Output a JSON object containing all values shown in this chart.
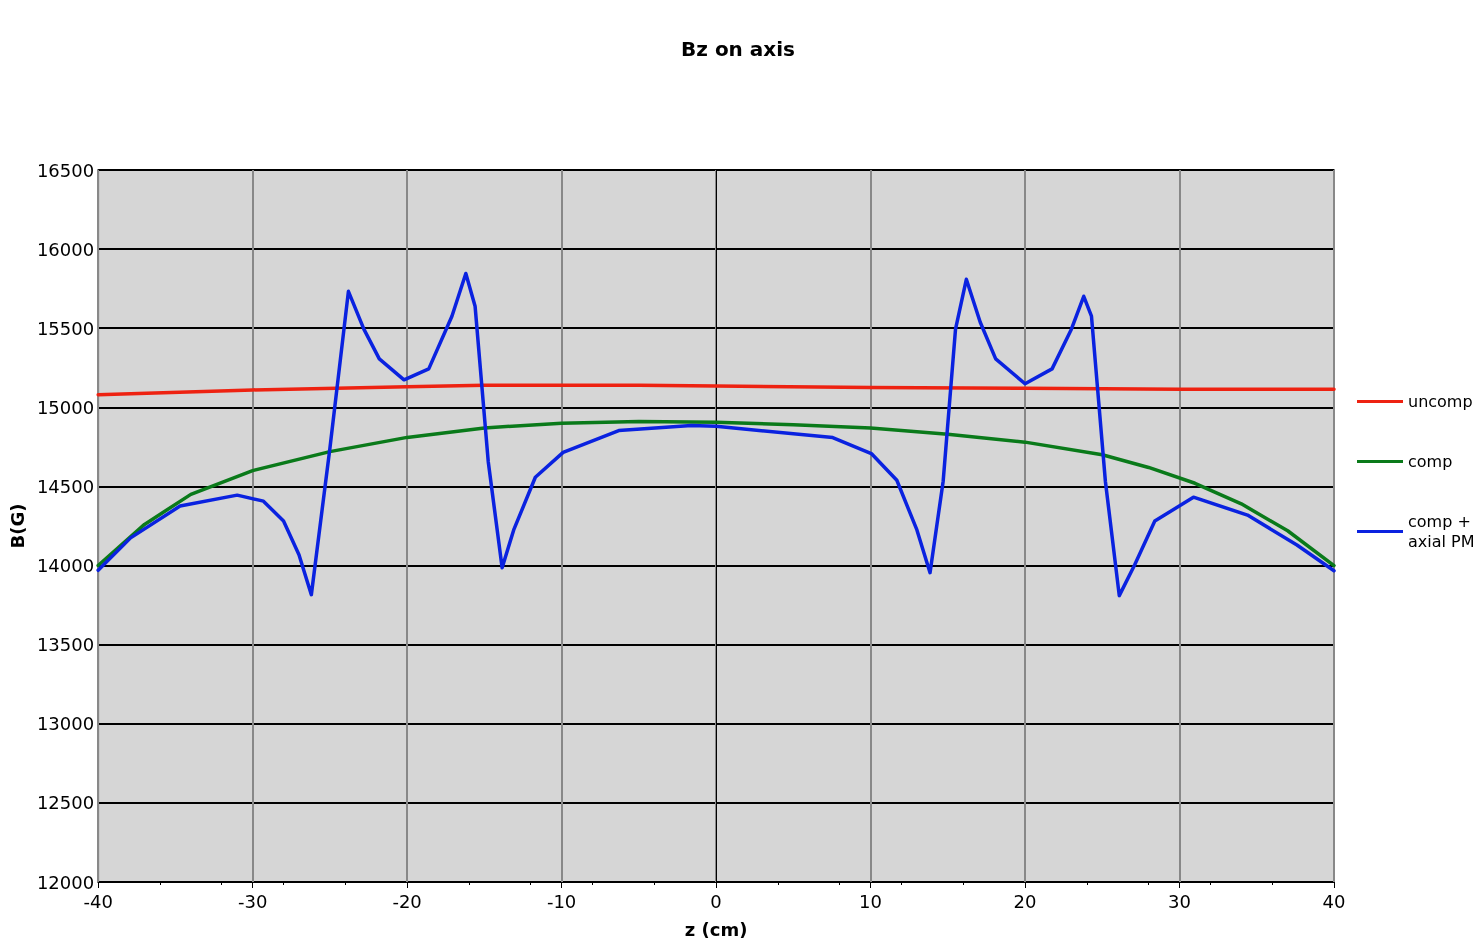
{
  "chart_data": {
    "type": "line",
    "title": "Bz on axis",
    "xlabel": "z (cm)",
    "ylabel": "B(G)",
    "xlim": [
      -40,
      40
    ],
    "xticks": [
      -40,
      -30,
      -20,
      -10,
      0,
      10,
      20,
      30,
      40
    ],
    "ylim": [
      12000,
      16500
    ],
    "yticks": [
      12000,
      12500,
      13000,
      13500,
      14000,
      14500,
      15000,
      15500,
      16000,
      16500
    ],
    "grid": true,
    "legend": "right",
    "marker": "none",
    "line_style": "solid",
    "series": [
      {
        "name": "uncomp",
        "color": "#ee2211",
        "x": [
          -40,
          -30,
          -20,
          -15,
          -5,
          0,
          10,
          20,
          30,
          40
        ],
        "values": [
          15080,
          15110,
          15130,
          15140,
          15140,
          15135,
          15125,
          15120,
          15115,
          15115
        ]
      },
      {
        "name": "comp",
        "color": "#0a7a1a",
        "x": [
          -40,
          -37,
          -34,
          -30,
          -25,
          -20,
          -15,
          -10,
          -5,
          0,
          5,
          10,
          15,
          20,
          25,
          28,
          31,
          34,
          37,
          40
        ],
        "values": [
          14000,
          14260,
          14450,
          14600,
          14720,
          14810,
          14870,
          14900,
          14910,
          14905,
          14890,
          14870,
          14830,
          14780,
          14700,
          14620,
          14520,
          14390,
          14220,
          14000
        ]
      },
      {
        "name": "comp + axial PM",
        "color": "#0a22e0",
        "x": [
          -40,
          -37.9,
          -34.7,
          -31,
          -29.3,
          -28,
          -27,
          -26.2,
          -25,
          -23.8,
          -22.8,
          -21.8,
          -20.2,
          -18.6,
          -17.1,
          -16.2,
          -15.6,
          -14.75,
          -13.85,
          -13.1,
          -11.7,
          -9.9,
          -6.3,
          -1.6,
          0,
          7.55,
          10.05,
          11.7,
          13,
          13.85,
          14.7,
          15.5,
          16.2,
          17.1,
          18.1,
          20,
          21.75,
          23,
          23.8,
          24.3,
          25.2,
          26.1,
          27.1,
          28.4,
          30.9,
          34.4,
          37.6,
          40
        ],
        "values": [
          13970,
          14175,
          14376,
          14445,
          14407,
          14281,
          14068,
          13816,
          14740,
          15733,
          15494,
          15306,
          15174,
          15243,
          15576,
          15846,
          15639,
          14658,
          13986,
          14225,
          14558,
          14715,
          14853,
          14885,
          14880,
          14809,
          14708,
          14539,
          14225,
          13955,
          14533,
          15494,
          15809,
          15538,
          15306,
          15149,
          15243,
          15494,
          15702,
          15576,
          14533,
          13810,
          14005,
          14281,
          14432,
          14319,
          14130,
          13967
        ]
      }
    ]
  }
}
